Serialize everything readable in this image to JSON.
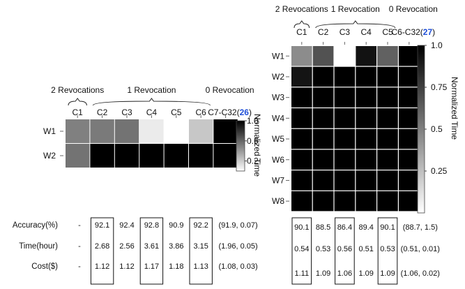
{
  "chart_data": [
    {
      "type": "heatmap",
      "group_labels": [
        "2 Revocations",
        "1 Revocation",
        "0 Revocation"
      ],
      "columns": [
        "C1",
        "C2",
        "C3",
        "C4",
        "C5",
        "C6",
        "C7-C32"
      ],
      "last_column_prefix": "C7-C32(",
      "last_column_count": "26",
      "last_column_suffix": ")",
      "rows": [
        "W1",
        "W2"
      ],
      "values": [
        [
          0.5,
          0.52,
          0.55,
          0.08,
          0.0,
          0.22,
          1.0
        ],
        [
          0.55,
          1.0,
          1.0,
          1.0,
          1.0,
          1.0,
          1.0
        ]
      ],
      "colorbar": {
        "label": "Normalized Time",
        "ticks": [
          "1.0",
          "0.6",
          "0.2"
        ],
        "min": 0,
        "max": 1,
        "tick_values": [
          1.0,
          0.6,
          0.2
        ]
      },
      "metrics": [
        {
          "label": "Accuracy(%)",
          "values": [
            "-",
            "92.1",
            "92.4",
            "92.8",
            "90.9",
            "92.2",
            "(91.9, 0.07)"
          ]
        },
        {
          "label": "Time(hour)",
          "values": [
            "-",
            "2.68",
            "2.56",
            "3.61",
            "3.86",
            "3.15",
            "(1.96, 0.05)"
          ]
        },
        {
          "label": "Cost($)",
          "values": [
            "-",
            "1.12",
            "1.12",
            "1.17",
            "1.18",
            "1.13",
            "(1.08, 0.03)"
          ]
        }
      ],
      "boxed_columns": [
        1,
        3,
        5
      ]
    },
    {
      "type": "heatmap",
      "group_labels": [
        "2 Revocations",
        "1 Revocation",
        "0 Revocation"
      ],
      "columns": [
        "C1",
        "C2",
        "C3",
        "C4",
        "C5",
        "C6-C32"
      ],
      "last_column_prefix": "C6-C32(",
      "last_column_count": "27",
      "last_column_suffix": ")",
      "rows": [
        "W1",
        "W2",
        "W3",
        "W4",
        "W5",
        "W6",
        "W7",
        "W8"
      ],
      "values": [
        [
          0.45,
          0.68,
          0.0,
          0.93,
          0.62,
          1.0
        ],
        [
          0.92,
          1.0,
          1.0,
          1.0,
          1.0,
          1.0
        ],
        [
          1.0,
          1.0,
          1.0,
          1.0,
          1.0,
          1.0
        ],
        [
          1.0,
          1.0,
          1.0,
          1.0,
          1.0,
          1.0
        ],
        [
          1.0,
          1.0,
          1.0,
          1.0,
          1.0,
          1.0
        ],
        [
          1.0,
          1.0,
          1.0,
          1.0,
          1.0,
          1.0
        ],
        [
          1.0,
          1.0,
          1.0,
          1.0,
          1.0,
          1.0
        ],
        [
          1.0,
          1.0,
          1.0,
          1.0,
          1.0,
          1.0
        ]
      ],
      "colorbar": {
        "label": "Normalized Time",
        "ticks": [
          "1.0",
          "0.75",
          "0.5",
          "0.25"
        ],
        "min": 0,
        "max": 1,
        "tick_values": [
          1.0,
          0.75,
          0.5,
          0.25
        ]
      },
      "metrics": [
        {
          "label": "",
          "values": [
            "90.1",
            "88.5",
            "86.4",
            "89.4",
            "90.1",
            "(88.7, 1.5)"
          ]
        },
        {
          "label": "",
          "values": [
            "0.54",
            "0.53",
            "0.56",
            "0.51",
            "0.53",
            "(0.51, 0.01)"
          ]
        },
        {
          "label": "",
          "values": [
            "1.11",
            "1.09",
            "1.06",
            "1.09",
            "1.09",
            "(1.06, 0.02)"
          ]
        }
      ],
      "boxed_columns": [
        0,
        2,
        4
      ]
    }
  ]
}
